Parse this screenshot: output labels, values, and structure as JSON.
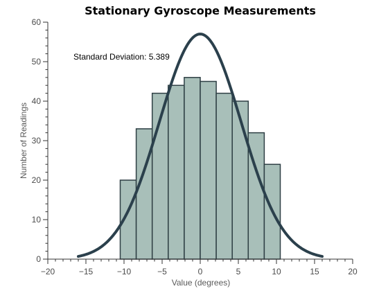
{
  "chart_data": {
    "type": "bar",
    "title": "Stationary Gyroscope Measurements",
    "xlabel": "Value (degrees)",
    "ylabel": "Number of Readings",
    "xlim": [
      -20,
      20
    ],
    "ylim": [
      0,
      60
    ],
    "xticks": [
      -20,
      -15,
      -10,
      -5,
      0,
      5,
      10,
      15,
      20
    ],
    "yticks": [
      0,
      10,
      20,
      30,
      40,
      50,
      60
    ],
    "bin_edges": [
      -10.5,
      -8.4,
      -6.3,
      -4.2,
      -2.1,
      0,
      2.1,
      4.2,
      6.3,
      8.4,
      10.5
    ],
    "values": [
      20,
      33,
      42,
      44,
      46,
      45,
      42,
      40,
      32,
      24
    ],
    "curve": {
      "type": "normal_fit",
      "mean": 0,
      "peak": 57,
      "std": 5.389,
      "x_range": [
        -16,
        16
      ]
    },
    "annotation": "Standard Deviation: 5.389",
    "grid": false,
    "colors": {
      "bar_fill": "#a8bfb9",
      "bar_edge": "#2e3f44",
      "curve": "#2b404c"
    }
  }
}
